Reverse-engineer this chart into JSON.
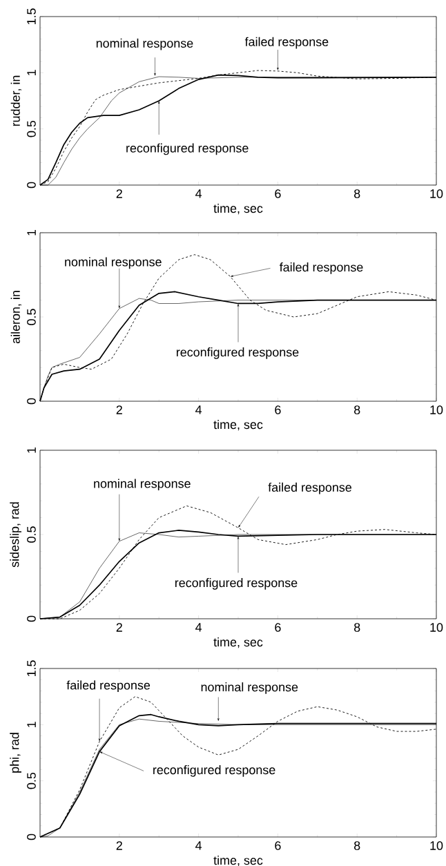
{
  "chart_data": [
    {
      "type": "line",
      "xlabel": "time, sec",
      "ylabel": "rudder, in",
      "xlim": [
        0,
        10
      ],
      "ylim": [
        0,
        1.5
      ],
      "xticks": [
        2,
        4,
        6,
        8,
        10
      ],
      "yticks": [
        0,
        0.5,
        1,
        1.5
      ],
      "series": [
        {
          "color": "#000000",
          "line_style": "solid",
          "x": [
            0,
            0.2,
            0.4,
            0.6,
            0.8,
            1,
            1.2,
            1.5,
            1.8,
            2,
            2.5,
            3,
            3.5,
            4,
            5,
            6,
            8,
            10
          ],
          "values": [
            0,
            0,
            0.07,
            0.2,
            0.32,
            0.42,
            0.5,
            0.6,
            0.75,
            0.82,
            0.92,
            0.965,
            0.96,
            0.95,
            0.96,
            0.96,
            0.96,
            0.96
          ]
        },
        {
          "color": "#000000",
          "line_style": "dashed",
          "x": [
            0,
            0.2,
            0.4,
            0.6,
            0.8,
            1,
            1.2,
            1.4,
            1.6,
            2,
            2.5,
            3,
            3.5,
            4,
            4.5,
            5,
            5.5,
            6,
            6.5,
            7,
            8,
            9,
            10
          ],
          "values": [
            0,
            0.03,
            0.15,
            0.3,
            0.42,
            0.52,
            0.65,
            0.76,
            0.8,
            0.85,
            0.88,
            0.91,
            0.93,
            0.95,
            0.98,
            1.0,
            1.02,
            1.015,
            1.0,
            0.97,
            0.945,
            0.95,
            0.96
          ]
        },
        {
          "color": "#000000",
          "line_style": "solid",
          "x": [
            0,
            0.2,
            0.4,
            0.6,
            0.8,
            1,
            1.2,
            1.6,
            2,
            2.5,
            3,
            3.5,
            4,
            4.5,
            5,
            5.5,
            6,
            7,
            10
          ],
          "values": [
            0,
            0.05,
            0.2,
            0.36,
            0.47,
            0.55,
            0.6,
            0.62,
            0.62,
            0.67,
            0.75,
            0.86,
            0.94,
            0.98,
            0.975,
            0.96,
            0.955,
            0.955,
            0.96
          ]
        }
      ],
      "annotations": [
        {
          "text": "nominal response",
          "x": 2.9,
          "y": 0.97
        },
        {
          "text": "failed response",
          "x": 6,
          "y": 1.02
        },
        {
          "text": "reconfigured response",
          "x": 3,
          "y": 0.75
        }
      ]
    },
    {
      "type": "line",
      "xlabel": "time, sec",
      "ylabel": "aileron, in",
      "xlim": [
        0,
        10
      ],
      "ylim": [
        0,
        1
      ],
      "xticks": [
        2,
        4,
        6,
        8,
        10
      ],
      "yticks": [
        0,
        0.5,
        1
      ],
      "series": [
        {
          "color": "#000000",
          "line_style": "solid",
          "x": [
            0,
            0.1,
            0.2,
            0.3,
            0.5,
            1,
            1.5,
            2,
            2.5,
            2.8,
            3,
            3.5,
            4,
            5,
            10
          ],
          "values": [
            0,
            0.08,
            0.15,
            0.2,
            0.22,
            0.26,
            0.4,
            0.55,
            0.61,
            0.6,
            0.58,
            0.58,
            0.59,
            0.6,
            0.6
          ]
        },
        {
          "color": "#000000",
          "line_style": "dashed",
          "x": [
            0,
            0.1,
            0.3,
            0.6,
            1,
            1.3,
            1.8,
            2.2,
            2.6,
            3,
            3.5,
            3.9,
            4.3,
            4.8,
            5.3,
            5.7,
            6.4,
            7,
            7.5,
            8,
            8.8,
            9.5,
            10
          ],
          "values": [
            0,
            0.08,
            0.2,
            0.22,
            0.2,
            0.19,
            0.25,
            0.4,
            0.58,
            0.73,
            0.84,
            0.87,
            0.84,
            0.74,
            0.6,
            0.54,
            0.5,
            0.52,
            0.57,
            0.62,
            0.65,
            0.63,
            0.6
          ]
        },
        {
          "color": "#000000",
          "line_style": "solid",
          "x": [
            0,
            0.1,
            0.3,
            0.6,
            1,
            1.5,
            2,
            2.5,
            3,
            3.4,
            4,
            4.5,
            5,
            5.5,
            6,
            7,
            10
          ],
          "values": [
            0,
            0.08,
            0.16,
            0.18,
            0.19,
            0.25,
            0.42,
            0.57,
            0.64,
            0.65,
            0.62,
            0.6,
            0.58,
            0.58,
            0.59,
            0.6,
            0.6
          ]
        }
      ],
      "annotations": [
        {
          "text": "nominal response",
          "x": 2,
          "y": 0.55
        },
        {
          "text": "failed response",
          "x": 4.8,
          "y": 0.74
        },
        {
          "text": "reconfigured response",
          "x": 5,
          "y": 0.58
        }
      ]
    },
    {
      "type": "line",
      "xlabel": "time, sec",
      "ylabel": "sideslip, rad",
      "xlim": [
        0,
        10
      ],
      "ylim": [
        0,
        1
      ],
      "xticks": [
        2,
        4,
        6,
        8,
        10
      ],
      "yticks": [
        0,
        0.5,
        1
      ],
      "series": [
        {
          "color": "#000000",
          "line_style": "solid",
          "x": [
            0,
            0.5,
            1,
            1.5,
            2,
            2.5,
            3,
            3.5,
            4,
            5,
            10
          ],
          "values": [
            0,
            0.01,
            0.1,
            0.3,
            0.46,
            0.51,
            0.5,
            0.485,
            0.49,
            0.5,
            0.5
          ]
        },
        {
          "color": "#000000",
          "line_style": "dashed",
          "x": [
            0,
            0.5,
            1,
            1.5,
            2,
            2.5,
            3,
            3.7,
            4.3,
            5,
            5.5,
            6.2,
            7,
            7.5,
            8,
            8.7,
            9.5,
            10
          ],
          "values": [
            0,
            0,
            0.05,
            0.15,
            0.3,
            0.47,
            0.6,
            0.67,
            0.63,
            0.54,
            0.47,
            0.44,
            0.47,
            0.5,
            0.52,
            0.53,
            0.51,
            0.5
          ]
        },
        {
          "color": "#000000",
          "line_style": "solid",
          "x": [
            0,
            0.5,
            1,
            1.5,
            2,
            2.5,
            3,
            3.5,
            4,
            4.5,
            5,
            6,
            7,
            10
          ],
          "values": [
            0,
            0.01,
            0.08,
            0.2,
            0.34,
            0.45,
            0.51,
            0.525,
            0.515,
            0.5,
            0.49,
            0.495,
            0.5,
            0.5
          ]
        }
      ],
      "annotations": [
        {
          "text": "nominal response",
          "x": 2,
          "y": 0.46
        },
        {
          "text": "failed response",
          "x": 5,
          "y": 0.54
        },
        {
          "text": "reconfigured response",
          "x": 5,
          "y": 0.49
        }
      ]
    },
    {
      "type": "line",
      "xlabel": "time, sec",
      "ylabel": "phi, rad",
      "xlim": [
        0,
        10
      ],
      "ylim": [
        0,
        1.5
      ],
      "xticks": [
        2,
        4,
        6,
        8,
        10
      ],
      "yticks": [
        0,
        0.5,
        1,
        1.5
      ],
      "series": [
        {
          "color": "#000000",
          "line_style": "solid",
          "x": [
            0,
            0.2,
            0.5,
            1,
            1.5,
            2,
            2.5,
            3,
            3.5,
            4,
            5,
            10
          ],
          "values": [
            0,
            0.01,
            0.08,
            0.4,
            0.78,
            1.0,
            1.05,
            1.03,
            1.02,
            1.01,
            1.0,
            1.0
          ]
        },
        {
          "color": "#000000",
          "line_style": "dashed",
          "x": [
            0,
            0.5,
            1,
            1.5,
            2,
            2.4,
            2.8,
            3.2,
            3.6,
            4,
            4.5,
            5,
            5.5,
            6,
            6.5,
            7,
            7.5,
            8,
            8.5,
            9,
            9.5,
            10
          ],
          "values": [
            0,
            0.08,
            0.42,
            0.85,
            1.15,
            1.25,
            1.2,
            1.05,
            0.9,
            0.8,
            0.73,
            0.78,
            0.9,
            1.03,
            1.12,
            1.16,
            1.13,
            1.07,
            0.98,
            0.94,
            0.94,
            0.96
          ]
        },
        {
          "color": "#000000",
          "line_style": "solid",
          "x": [
            0,
            0.5,
            1,
            1.5,
            2,
            2.5,
            2.8,
            3,
            3.5,
            4,
            4.5,
            5,
            6,
            10
          ],
          "values": [
            0,
            0.08,
            0.38,
            0.76,
            0.99,
            1.08,
            1.09,
            1.07,
            1.03,
            1.0,
            0.99,
            1.0,
            1.01,
            1.01
          ]
        }
      ],
      "annotations": [
        {
          "text": "failed response",
          "x": 1.5,
          "y": 0.85
        },
        {
          "text": "nominal response",
          "x": 4.5,
          "y": 1.03
        },
        {
          "text": "reconfigured response",
          "x": 1.5,
          "y": 0.76
        }
      ]
    }
  ]
}
